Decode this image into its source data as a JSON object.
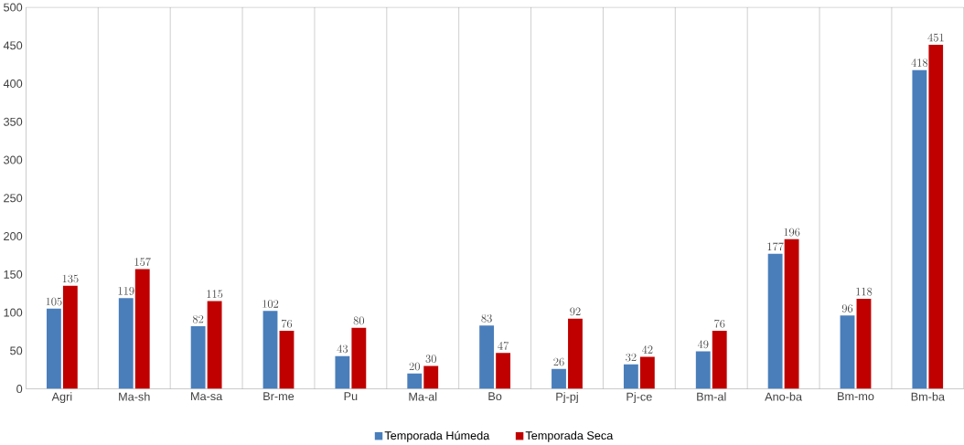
{
  "chart_data": {
    "type": "bar",
    "categories": [
      "Agri",
      "Ma-sh",
      "Ma-sa",
      "Br-me",
      "Pu",
      "Ma-al",
      "Bo",
      "Pj-pj",
      "Pj-ce",
      "Bm-al",
      "Ano-ba",
      "Bm-mo",
      "Bm-ba"
    ],
    "series": [
      {
        "name": "Temporada Húmeda",
        "color": "#4a7ebb",
        "values": [
          105,
          119,
          82,
          102,
          43,
          20,
          83,
          26,
          32,
          49,
          177,
          96,
          418
        ]
      },
      {
        "name": "Temporada Seca",
        "color": "#c00000",
        "values": [
          135,
          157,
          115,
          76,
          80,
          30,
          47,
          92,
          42,
          76,
          196,
          118,
          451
        ]
      }
    ],
    "ylim": [
      0,
      500
    ],
    "yticks": [
      0,
      50,
      100,
      150,
      200,
      250,
      300,
      350,
      400,
      450,
      500
    ],
    "grid": "x",
    "legend": "bottom",
    "data_labels": true
  }
}
